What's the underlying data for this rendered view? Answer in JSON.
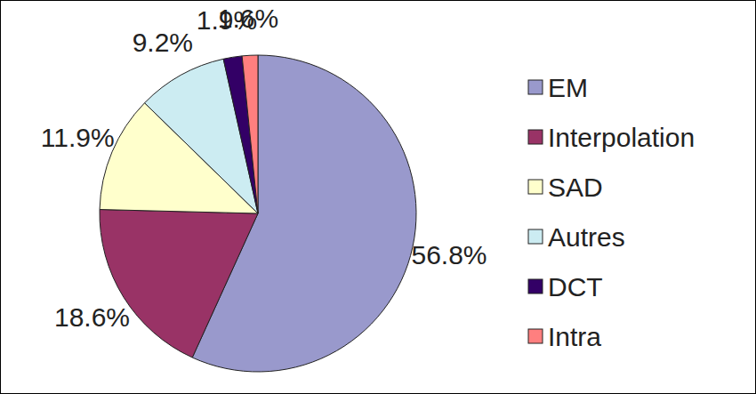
{
  "chart_data": {
    "type": "pie",
    "categories": [
      "EM",
      "Interpolation",
      "SAD",
      "Autres",
      "DCT",
      "Intra"
    ],
    "values": [
      56.8,
      18.6,
      11.9,
      9.2,
      1.9,
      1.6
    ],
    "value_labels": [
      "56.8%",
      "18.6%",
      "11.9%",
      "9.2%",
      "1.9%",
      "1.6%"
    ],
    "colors": [
      "#9999cc",
      "#993366",
      "#ffffcc",
      "#ccecf2",
      "#330066",
      "#ff7f7f"
    ],
    "data_labels": true,
    "legend": "right"
  }
}
